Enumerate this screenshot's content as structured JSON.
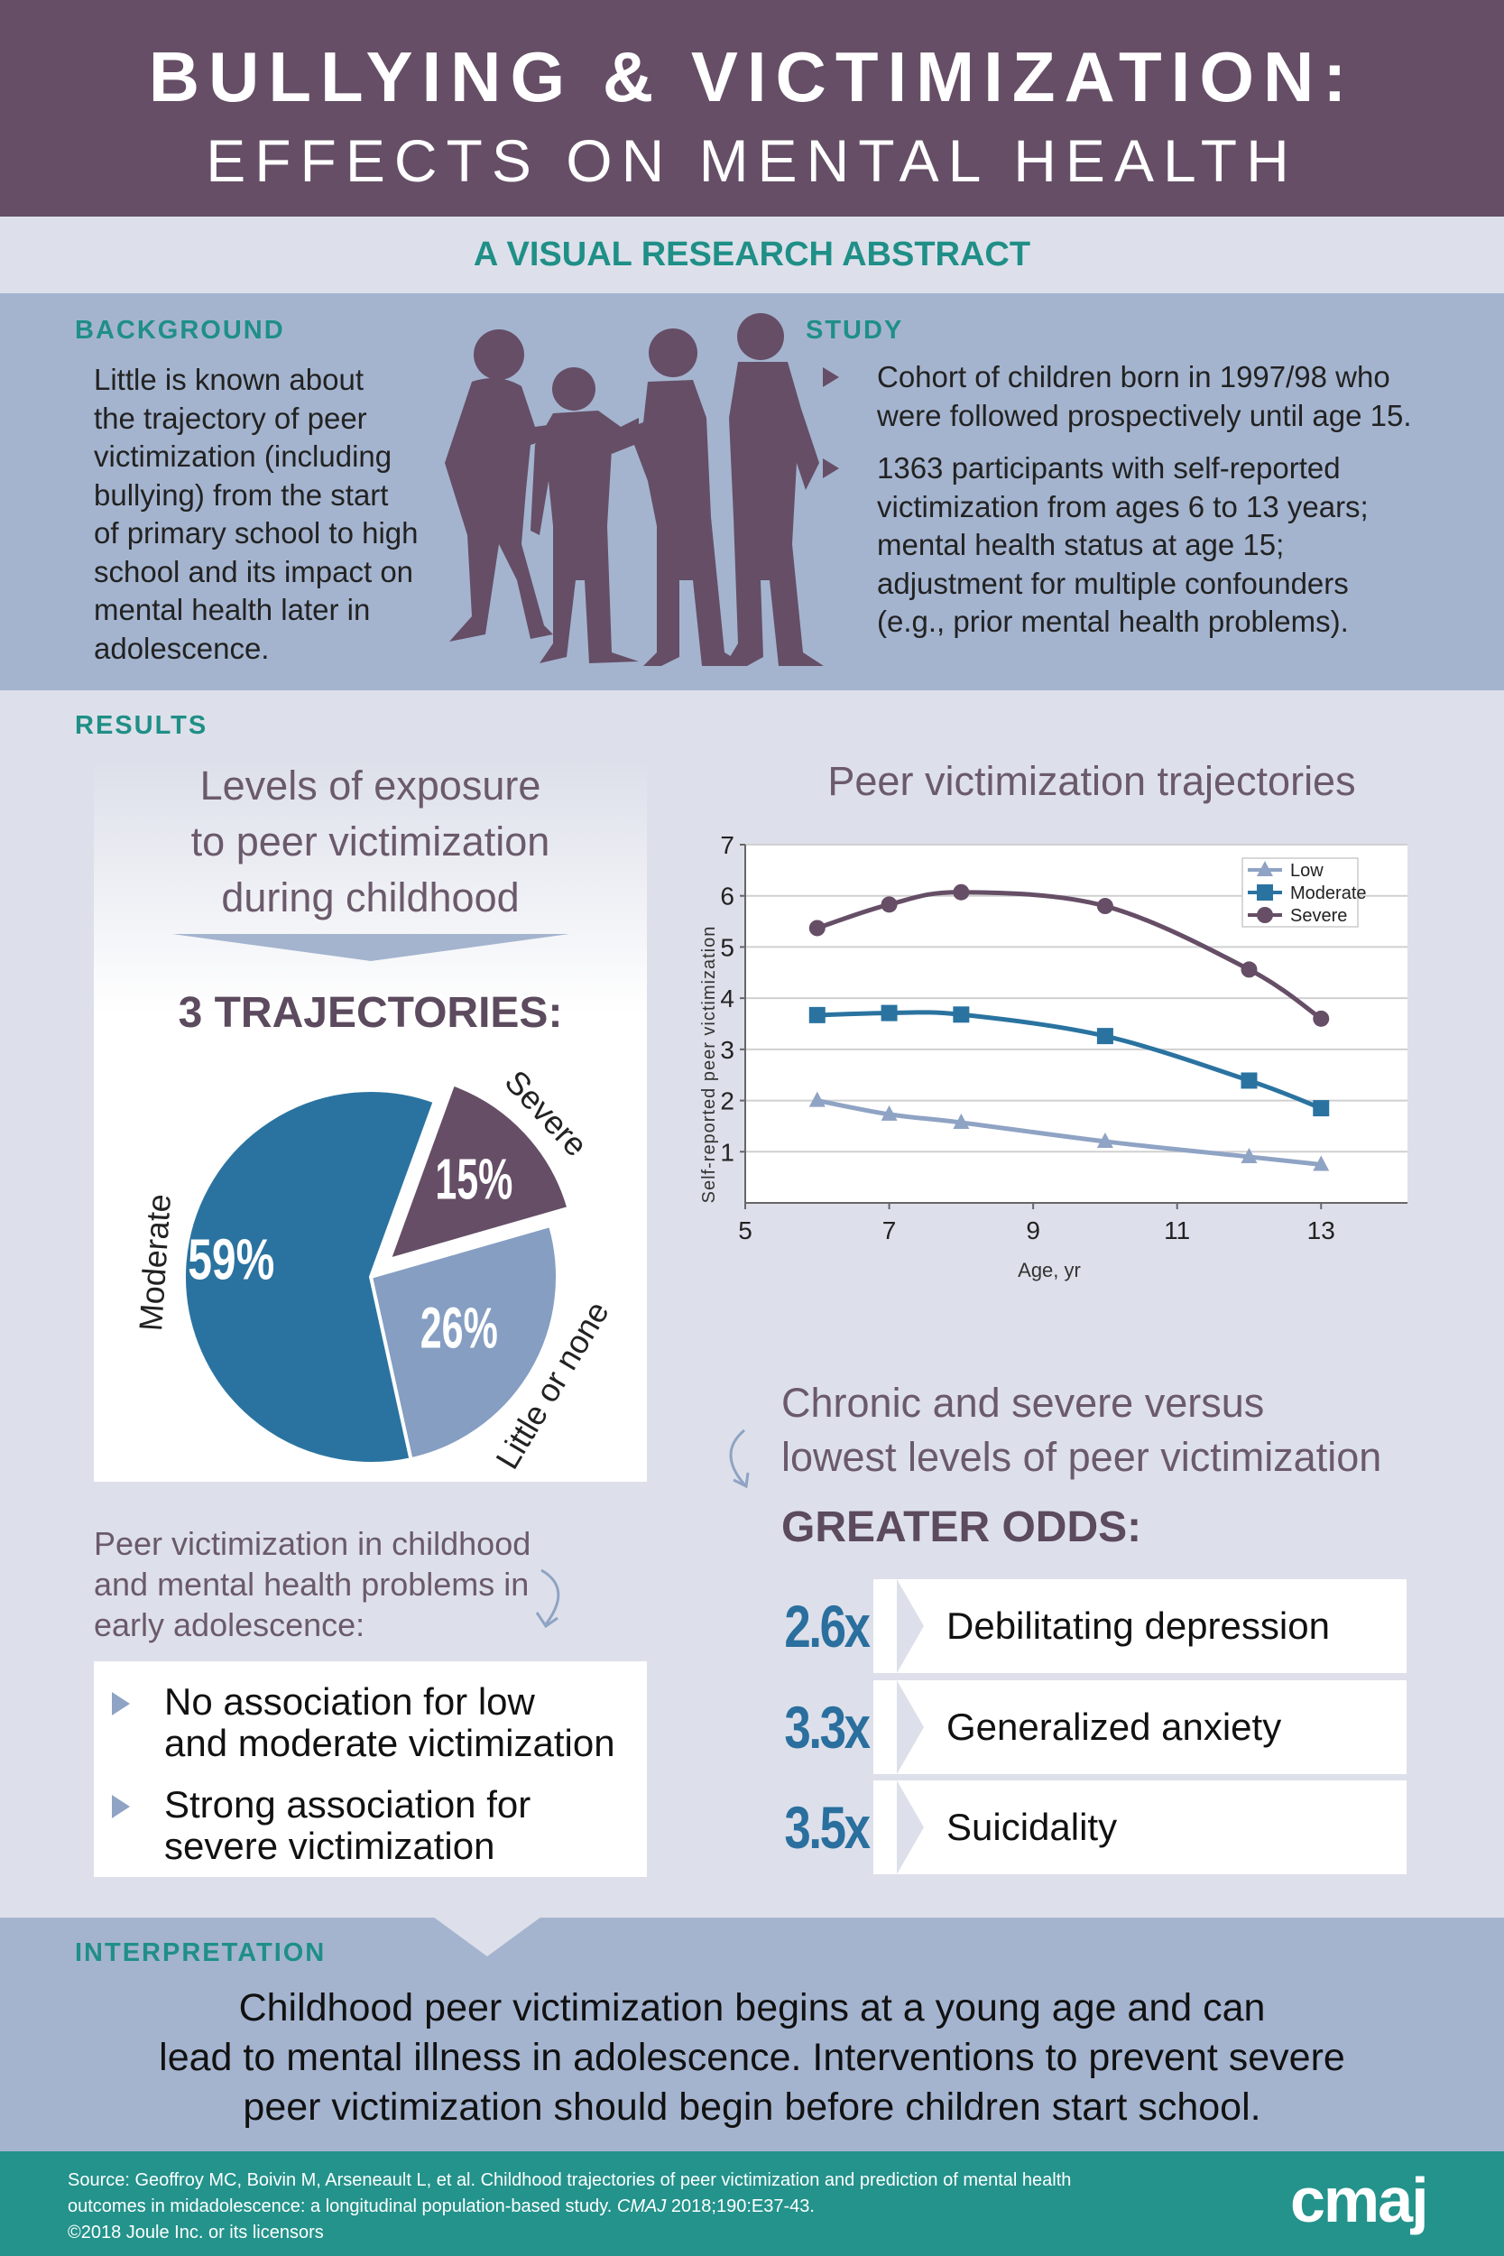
{
  "header": {
    "title": "BULLYING & VICTIMIZATION:",
    "subtitle": "EFFECTS ON MENTAL HEALTH"
  },
  "abstract_label": "A VISUAL RESEARCH ABSTRACT",
  "background": {
    "label": "BACKGROUND",
    "lines": [
      "Little is known about",
      "the trajectory of peer",
      "victimization (including",
      "bullying) from the start",
      "of primary school to high",
      "school and its impact on",
      "mental health later in",
      "adolescence."
    ]
  },
  "study": {
    "label": "STUDY",
    "bullets": [
      [
        "Cohort of children born in 1997/98 who",
        "were followed prospectively until age 15."
      ],
      [
        "1363 participants with self-reported",
        "victimization from ages 6 to 13 years;",
        "mental health status at age 15;",
        "adjustment for multiple confounders",
        "(e.g., prior mental health problems)."
      ]
    ]
  },
  "results": {
    "label": "RESULTS",
    "exposure_title": [
      "Levels of exposure",
      "to peer victimization",
      "during childhood"
    ],
    "trajectories_heading": "3 TRAJECTORIES:",
    "pie": [
      {
        "label": "Moderate",
        "value": 59,
        "text": "59%",
        "color": "#2a73a0"
      },
      {
        "label": "Severe",
        "value": 15,
        "text": "15%",
        "color": "#654e66"
      },
      {
        "label": "Little or none",
        "value": 26,
        "text": "26%",
        "color": "#859ec2"
      }
    ],
    "association_title": [
      "Peer victimization in childhood",
      "and mental health problems in",
      "early adolescence:"
    ],
    "association_bullets": [
      [
        "No association for low",
        "and moderate victimization"
      ],
      [
        "Strong association for",
        "severe victimization"
      ]
    ],
    "chronic_title": [
      "Chronic and severe versus",
      "lowest levels of peer victimization"
    ],
    "odds_heading": "GREATER ODDS:",
    "odds": [
      {
        "value": "2.6x",
        "outcome": "Debilitating depression"
      },
      {
        "value": "3.3x",
        "outcome": "Generalized anxiety"
      },
      {
        "value": "3.5x",
        "outcome": "Suicidality"
      }
    ]
  },
  "chart_data": {
    "type": "line",
    "title": "Peer victimization trajectories",
    "xlabel": "Age, yr",
    "ylabel": "Self-reported peer victimization",
    "xlim": [
      5,
      14.2
    ],
    "ylim": [
      0,
      7
    ],
    "xticks": [
      5,
      7,
      9,
      11,
      13
    ],
    "yticks": [
      1,
      2,
      3,
      4,
      5,
      6,
      7
    ],
    "grid": true,
    "legend": "top-right",
    "x": [
      6,
      7,
      8,
      10,
      12,
      13
    ],
    "series": [
      {
        "name": "Low",
        "values": [
          2.0,
          1.73,
          1.57,
          1.2,
          0.9,
          0.75
        ],
        "color": "#8fa3c4",
        "marker": "triangle"
      },
      {
        "name": "Moderate",
        "values": [
          3.67,
          3.71,
          3.68,
          3.26,
          2.39,
          1.85
        ],
        "color": "#2a73a0",
        "marker": "square"
      },
      {
        "name": "Severe",
        "values": [
          5.37,
          5.83,
          6.07,
          5.8,
          4.56,
          3.6
        ],
        "color": "#654e66",
        "marker": "circle"
      }
    ]
  },
  "interpretation": {
    "label": "INTERPRETATION",
    "lines": [
      "Childhood peer victimization begins at a young age and can",
      "lead to mental illness in adolescence. Interventions to prevent severe",
      "peer victimization should begin before children start school."
    ]
  },
  "footer": {
    "source_lines": [
      "Source: Geoffroy MC, Boivin M, Arseneault L, et al. Childhood trajectories of peer victimization and prediction of mental health",
      "outcomes in midadolescence: a longitudinal population-based study."
    ],
    "journal": "CMAJ",
    "citation": " 2018;190:E37-43.",
    "copyright": "©2018 Joule Inc. or its licensors",
    "logo": "cmaj"
  }
}
